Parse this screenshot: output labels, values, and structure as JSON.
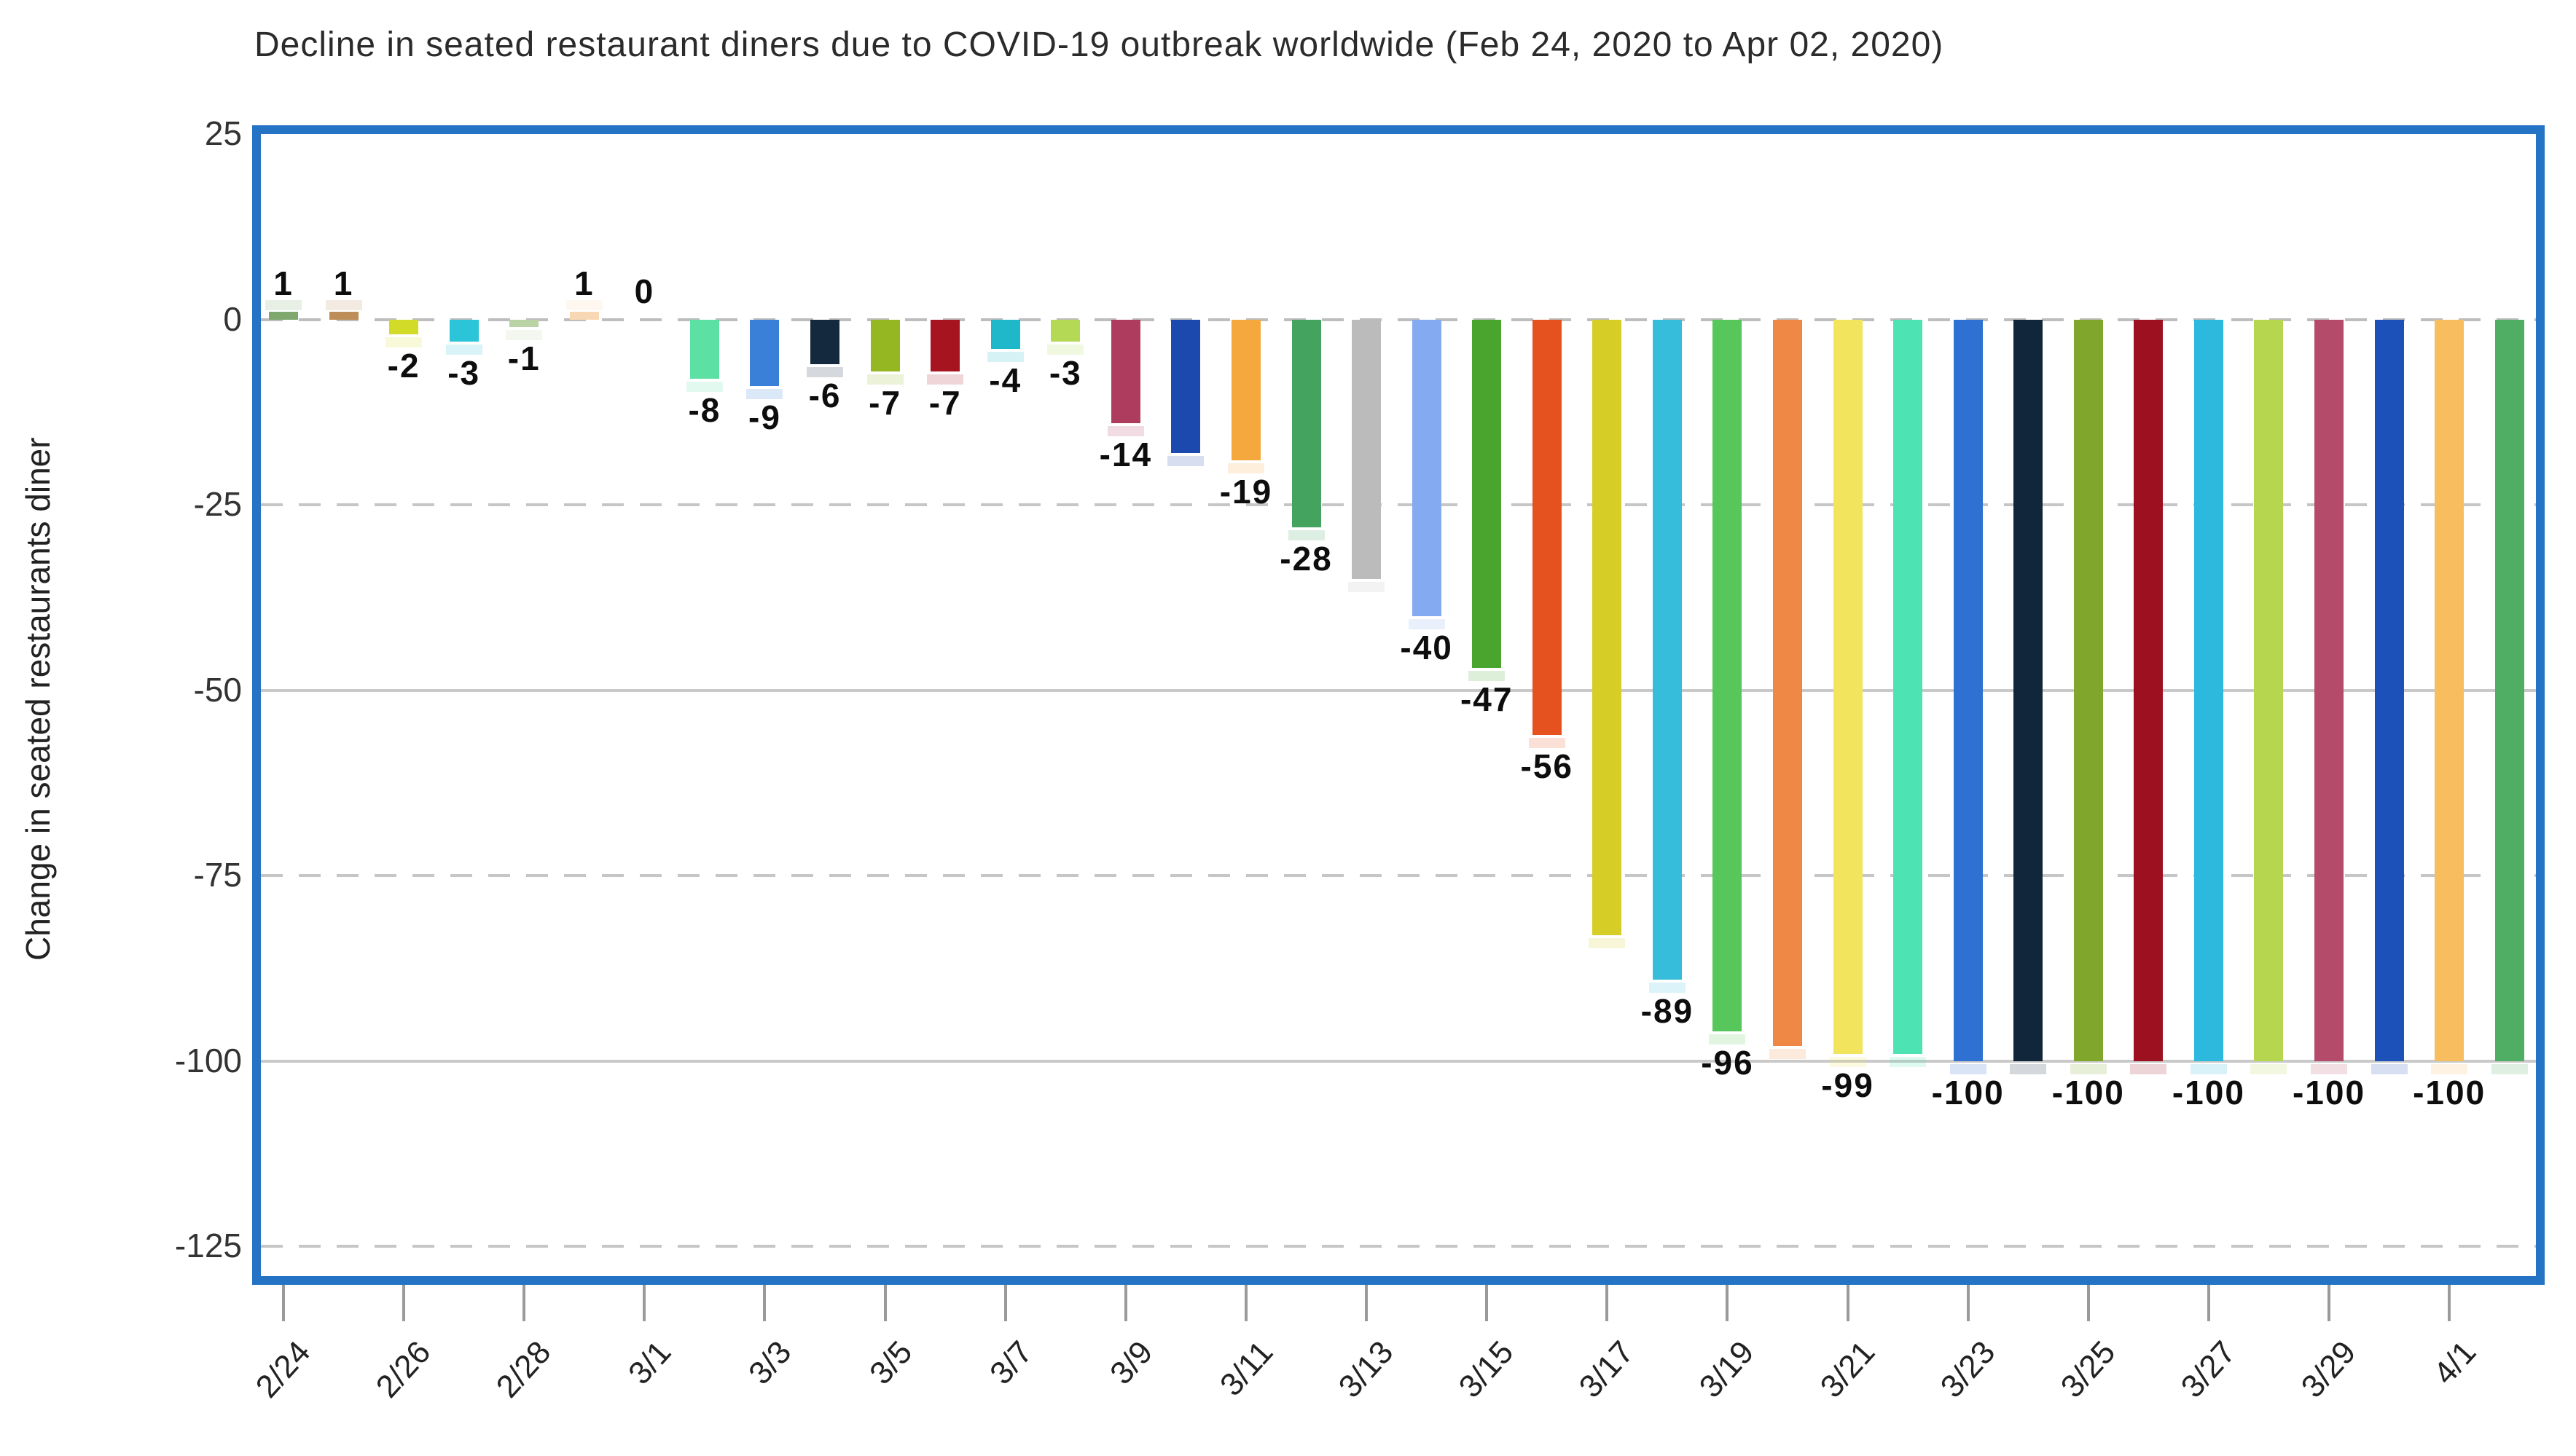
{
  "chart_data": {
    "type": "bar",
    "title": "Decline in seated restaurant diners due to COVID-19 outbreak worldwide (Feb 24, 2020 to Apr 02, 2020)",
    "xlabel": "",
    "ylabel": "Change in seated restaurants diner",
    "ylim": [
      -129,
      25
    ],
    "yticks": [
      25,
      0,
      -25,
      -50,
      -75,
      -100,
      -125
    ],
    "ytick_labels": [
      "25",
      "0",
      "-25",
      "-50",
      "-75",
      "-100",
      "-125"
    ],
    "grid": "horizontal",
    "legend": "none",
    "x_tick_labels": [
      "2/24",
      "2/26",
      "2/28",
      "3/1",
      "3/3",
      "3/5",
      "3/7",
      "3/9",
      "3/11",
      "3/13",
      "3/15",
      "3/17",
      "3/19",
      "3/21",
      "3/23",
      "3/25",
      "3/27",
      "3/29",
      "4/1"
    ],
    "categories": [
      "2/24",
      "2/25",
      "2/26",
      "2/27",
      "2/28",
      "2/29",
      "3/1",
      "3/2",
      "3/3",
      "3/4",
      "3/5",
      "3/6",
      "3/7",
      "3/8",
      "3/9",
      "3/10",
      "3/11",
      "3/12",
      "3/13",
      "3/14",
      "3/15",
      "3/16",
      "3/17",
      "3/18",
      "3/19",
      "3/20",
      "3/21",
      "3/22",
      "3/23",
      "3/24",
      "3/25",
      "3/26",
      "3/27",
      "3/28",
      "3/29",
      "3/31",
      "4/1",
      "4/2"
    ],
    "values": [
      1,
      1,
      -2,
      -3,
      -1,
      1,
      0,
      -8,
      -9,
      -6,
      -7,
      -7,
      -4,
      -3,
      -14,
      -18,
      -19,
      -28,
      -35,
      -40,
      -47,
      -56,
      -83,
      -89,
      -96,
      -98,
      -99,
      -99,
      -100,
      -100,
      -100,
      -100,
      -100,
      -100,
      -100,
      -100,
      -100,
      -100
    ],
    "data_labels": [
      "1",
      "1",
      "-2",
      "-3",
      "-1",
      "1",
      "0",
      "-8",
      "-9",
      "-6",
      "-7",
      "-7",
      "-4",
      "-3",
      "-14",
      null,
      "-19",
      "-28",
      null,
      "-40",
      "-47",
      "-56",
      null,
      "-89",
      "-96",
      null,
      "-99",
      null,
      "-100",
      null,
      "-100",
      null,
      "-100",
      null,
      "-100",
      null,
      "-100",
      null
    ],
    "bar_colors": [
      "#7fa86f",
      "#bd8e58",
      "#d2dc28",
      "#2bc4d8",
      "#bad3a5",
      "#f8d8b4",
      "#cccccc",
      "#5ce0a4",
      "#3a80d9",
      "#14293d",
      "#95b822",
      "#a6141f",
      "#1fb8ca",
      "#b4d955",
      "#ae3c5e",
      "#1c49ae",
      "#f4a83d",
      "#44a45f",
      "#bbbbbb",
      "#84abf1",
      "#4aa52e",
      "#e5511f",
      "#d6ce27",
      "#36bddc",
      "#58c75b",
      "#f08845",
      "#f3e45d",
      "#4ee3b3",
      "#2f70d3",
      "#11263b",
      "#81a62c",
      "#9c101f",
      "#2db9dd",
      "#b6d650",
      "#b44b6a",
      "#1c51b9",
      "#f8bd5f",
      "#50ae64"
    ]
  },
  "frame": {
    "border_color": "#2573c4",
    "gridline_color": "#c9c9c9",
    "tick_color": "#9a9a9a"
  }
}
